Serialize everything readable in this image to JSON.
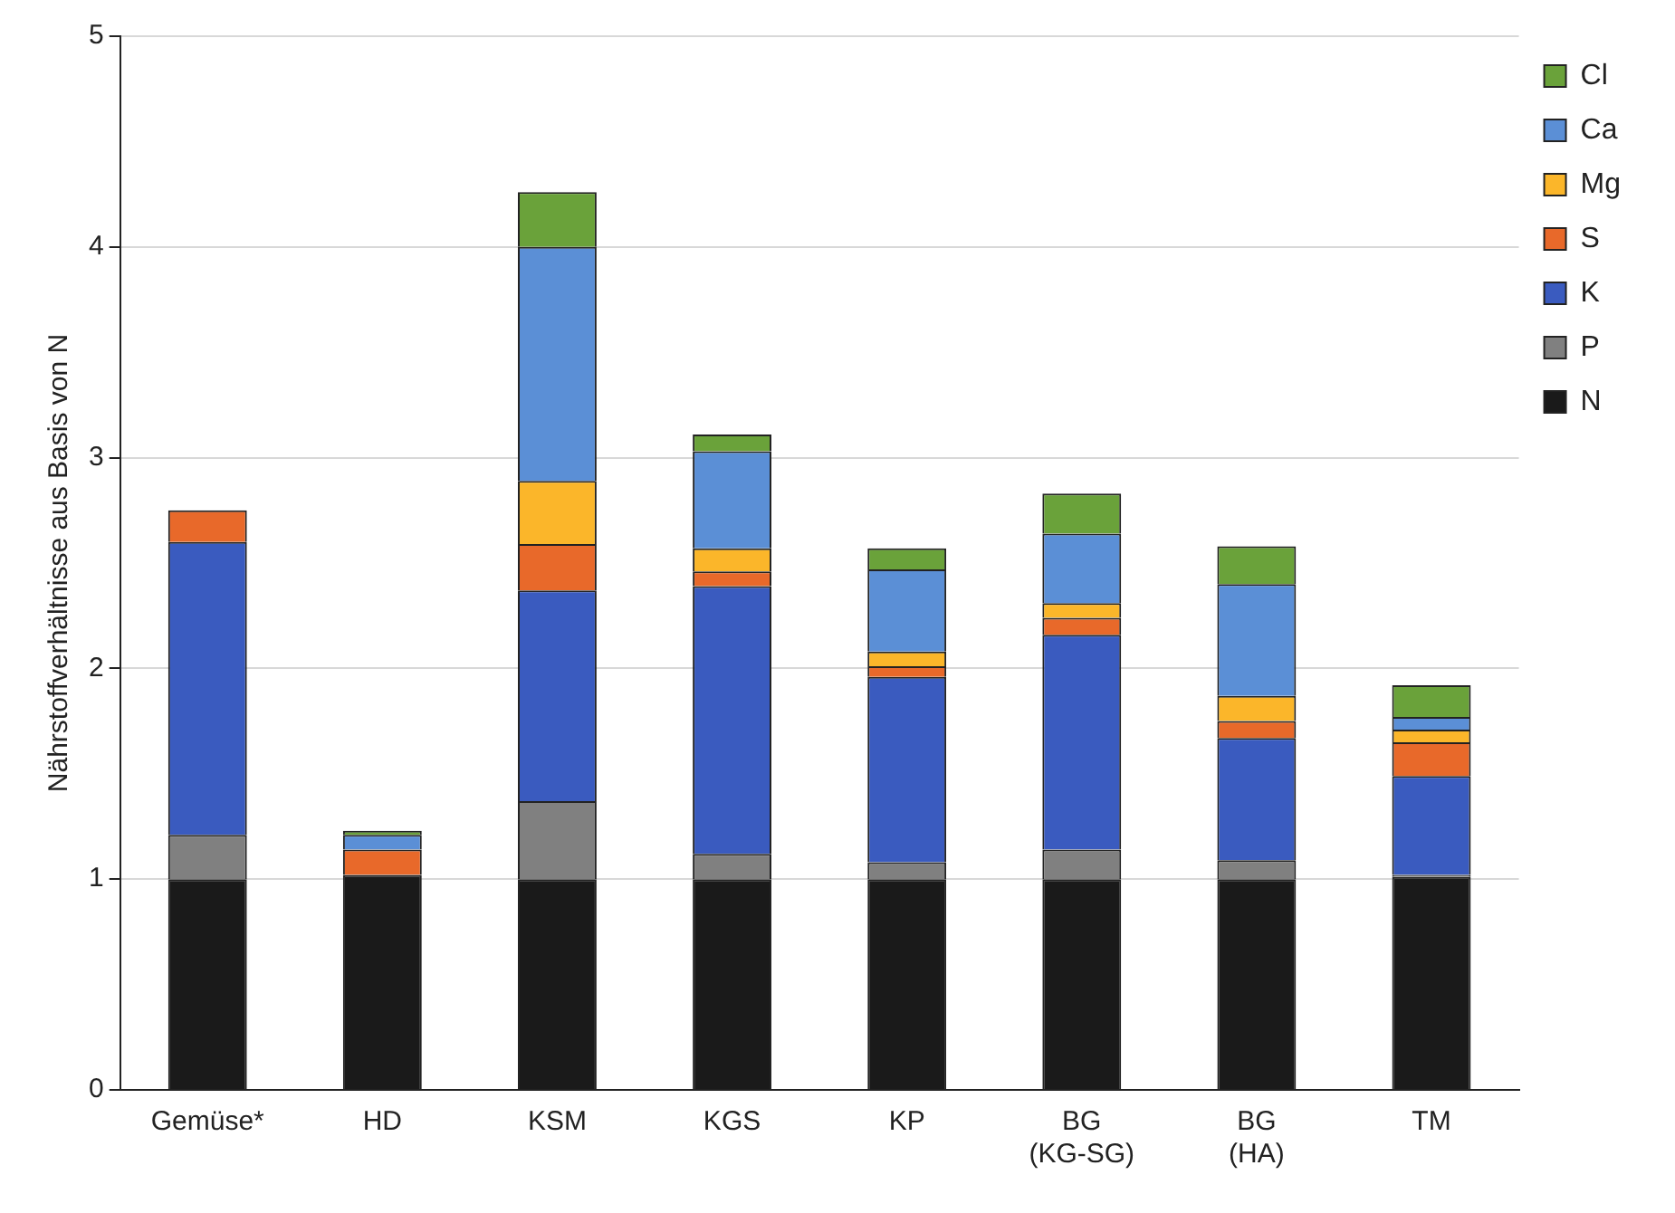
{
  "chart_data": {
    "type": "bar",
    "stacked": true,
    "ylabel": "Nährstoffverhältnisse aus Basis von N",
    "categories": [
      "Gemüse*",
      "HD",
      "KSM",
      "KGS",
      "KP",
      "BG (KG-SG)",
      "BG (HA)",
      "TM"
    ],
    "series": [
      {
        "name": "N",
        "color": "#1a1a1a",
        "values": [
          1.0,
          1.02,
          1.0,
          1.0,
          1.0,
          1.0,
          1.0,
          1.01
        ]
      },
      {
        "name": "P",
        "color": "#808080",
        "values": [
          0.21,
          0,
          0.37,
          0.12,
          0.08,
          0.14,
          0.09,
          0.01
        ]
      },
      {
        "name": "K",
        "color": "#3a5bbf",
        "values": [
          1.39,
          0,
          1.0,
          1.27,
          0.88,
          1.02,
          0.58,
          0.47
        ]
      },
      {
        "name": "S",
        "color": "#e8692a",
        "values": [
          0.15,
          0.12,
          0.22,
          0.07,
          0.05,
          0.08,
          0.08,
          0.16
        ]
      },
      {
        "name": "Mg",
        "color": "#fbb62a",
        "values": [
          0,
          0,
          0.3,
          0.11,
          0.07,
          0.07,
          0.12,
          0.06
        ]
      },
      {
        "name": "Ca",
        "color": "#5b8fd6",
        "values": [
          0,
          0.07,
          1.11,
          0.46,
          0.39,
          0.33,
          0.53,
          0.06
        ]
      },
      {
        "name": "Cl",
        "color": "#6aa23a",
        "values": [
          0,
          0.02,
          0.26,
          0.08,
          0.1,
          0.19,
          0.18,
          0.15
        ]
      }
    ],
    "ylim": [
      0,
      5
    ],
    "yticks": [
      0,
      1,
      2,
      3,
      4,
      5
    ],
    "grid": "y",
    "legend": "top right"
  }
}
